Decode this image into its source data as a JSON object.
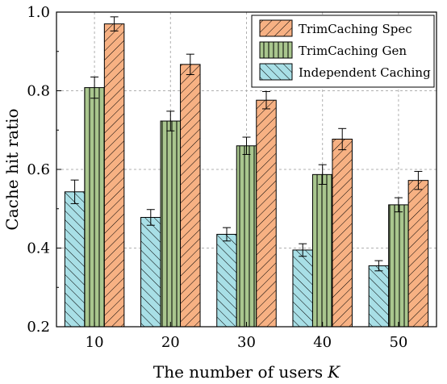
{
  "chart_data": {
    "type": "bar",
    "xlabel": "The number of users",
    "xlabel_var": "K",
    "ylabel": "Cache hit ratio",
    "categories": [
      "10",
      "20",
      "30",
      "40",
      "50"
    ],
    "ylim": [
      0.2,
      1.0
    ],
    "yticks": [
      "0.2",
      "0.4",
      "0.6",
      "0.8",
      "1.0"
    ],
    "grid": true,
    "legend_position": "top-right",
    "series": [
      {
        "name": "Independent Caching",
        "color": "#a8dfe6",
        "hatch": "backslash",
        "values": [
          0.543,
          0.478,
          0.435,
          0.395,
          0.355
        ],
        "errors": [
          0.03,
          0.02,
          0.017,
          0.016,
          0.013
        ]
      },
      {
        "name": "TrimCaching Gen",
        "color": "#a9c68e",
        "hatch": "vertical",
        "values": [
          0.808,
          0.723,
          0.66,
          0.587,
          0.51
        ],
        "errors": [
          0.027,
          0.025,
          0.022,
          0.025,
          0.018
        ]
      },
      {
        "name": "TrimCaching Spec",
        "color": "#f7b183",
        "hatch": "slash",
        "values": [
          0.97,
          0.867,
          0.776,
          0.677,
          0.572
        ],
        "errors": [
          0.018,
          0.026,
          0.022,
          0.027,
          0.023
        ]
      }
    ]
  }
}
